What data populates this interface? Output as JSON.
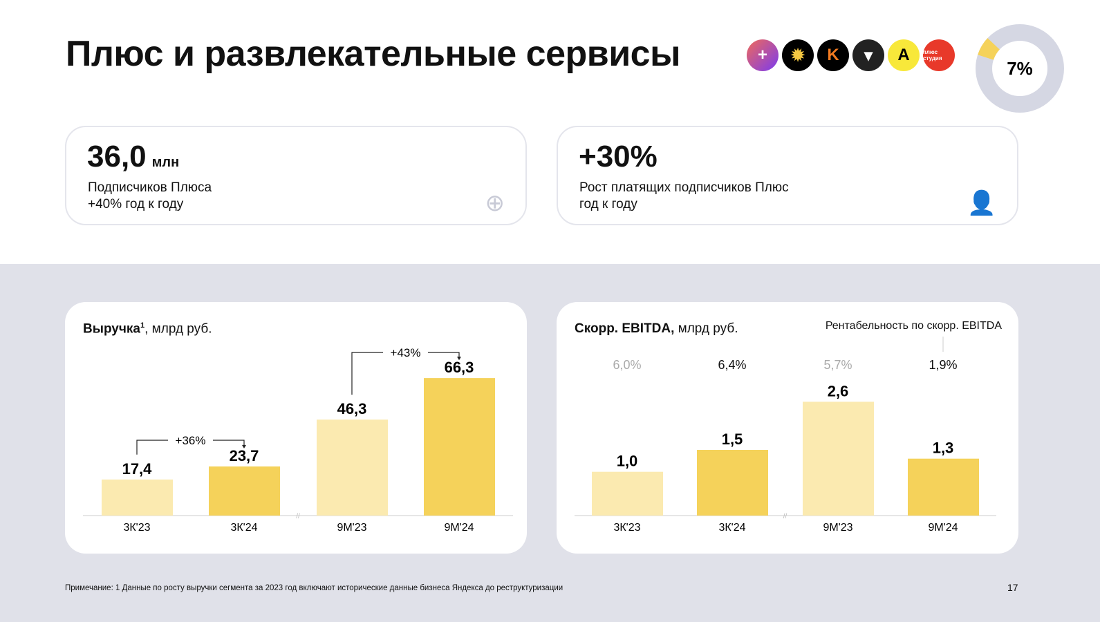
{
  "title": "Плюс и развлекательные сервисы",
  "logos": [
    {
      "name": "plus",
      "color": "#c04ad8"
    },
    {
      "name": "kinopoisk-sun",
      "color": "#000"
    },
    {
      "name": "kinopoisk",
      "color": "#111"
    },
    {
      "name": "bookmate",
      "color": "#222"
    },
    {
      "name": "afisha",
      "color": "#f8e83a"
    },
    {
      "name": "plus-studio",
      "color": "#e8392a",
      "text": "плюс студия"
    }
  ],
  "donut": {
    "label": "7%",
    "share": 0.07,
    "accent": "#f5d25a",
    "rest": "#d5d7e3"
  },
  "kpis": [
    {
      "value": "36,0",
      "unit": "млн",
      "line1": "Подписчиков Плюса",
      "line2": "+40% год к году",
      "icon": "plus-icon"
    },
    {
      "value": "+30%",
      "unit": "",
      "line1": "Рост платящих подписчиков Плюс",
      "line2": "год к году",
      "icon": "user-icon"
    }
  ],
  "chart_data": [
    {
      "type": "bar",
      "title_bold": "Выручка",
      "title_sup": "1",
      "title_rest": ", млрд руб.",
      "categories": [
        "3К'23",
        "3К'24",
        "9М'23",
        "9М'24"
      ],
      "values": [
        17.4,
        23.7,
        46.3,
        66.3
      ],
      "labels": [
        "17,4",
        "23,7",
        "46,3",
        "66,3"
      ],
      "colors": [
        "#fbeab0",
        "#f5d25a",
        "#fbeab0",
        "#f5d25a"
      ],
      "growth": [
        "+36%",
        "+43%"
      ],
      "ylim": [
        0,
        70
      ]
    },
    {
      "type": "bar",
      "title_bold": "Скорр. EBITDA,",
      "title_rest": " млрд руб.",
      "categories": [
        "3К'23",
        "3К'24",
        "9М'23",
        "9М'24"
      ],
      "values": [
        1.0,
        1.5,
        2.6,
        1.3
      ],
      "labels": [
        "1,0",
        "1,5",
        "2,6",
        "1,3"
      ],
      "colors": [
        "#fbeab0",
        "#f5d25a",
        "#fbeab0",
        "#f5d25a"
      ],
      "margin_title": "Рентабельность по скорр. EBITDA",
      "margins": [
        "6,0%",
        "6,4%",
        "5,7%",
        "1,9%"
      ],
      "ylim": [
        0,
        3
      ]
    }
  ],
  "footnote": "Примечание: 1  Данные по росту выручки сегмента за 2023 год включают исторические данные бизнеса Яндекса до реструктуризации",
  "page": "17"
}
